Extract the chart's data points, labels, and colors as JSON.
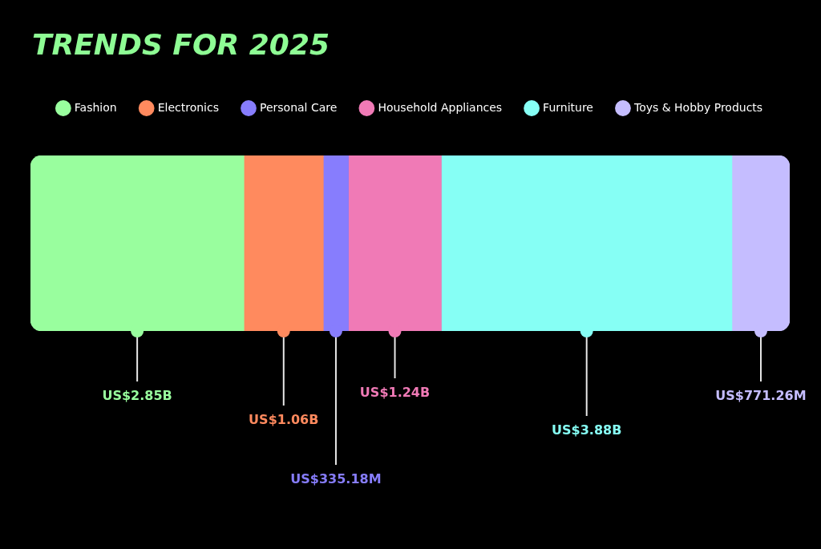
{
  "chart_data": {
    "type": "bar",
    "title": "TRENDS FOR 2025",
    "orientation": "horizontal",
    "stacked": true,
    "legend": "top",
    "categories": [
      null
    ],
    "series": [
      {
        "name": "Fashion",
        "color": "#99fe9e",
        "values": [
          2850000000
        ],
        "value_labels": [
          "US$2.85B"
        ]
      },
      {
        "name": "Electronics",
        "color": "#ff8a5e",
        "values": [
          1060000000
        ],
        "value_labels": [
          "US$1.06B"
        ]
      },
      {
        "name": "Personal Care",
        "color": "#877dfd",
        "values": [
          335180000
        ],
        "value_labels": [
          "US$335.18M"
        ]
      },
      {
        "name": "Household Appliances",
        "color": "#f07ab6",
        "values": [
          1240000000
        ],
        "value_labels": [
          "US$1.24B"
        ]
      },
      {
        "name": "Furniture",
        "color": "#86fff5",
        "values": [
          3880000000
        ],
        "value_labels": [
          "US$3.88B"
        ]
      },
      {
        "name": "Toys & Hobby Products",
        "color": "#c5bdff",
        "values": [
          771260000
        ],
        "value_labels": [
          "US$771.26M"
        ]
      }
    ]
  }
}
